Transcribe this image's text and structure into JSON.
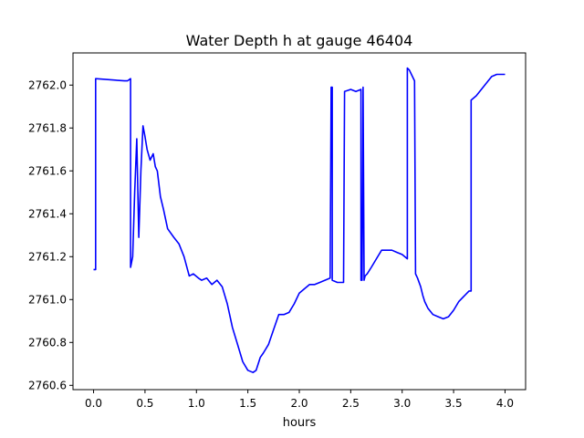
{
  "chart_data": {
    "type": "line",
    "title": "Water Depth h at gauge 46404",
    "xlabel": "hours",
    "ylabel": "",
    "xlim": [
      -0.2,
      4.2
    ],
    "ylim": [
      2760.58,
      2762.15
    ],
    "xticks": [
      0.0,
      0.5,
      1.0,
      1.5,
      2.0,
      2.5,
      3.0,
      3.5,
      4.0
    ],
    "xtick_labels": [
      "0.0",
      "0.5",
      "1.0",
      "1.5",
      "2.0",
      "2.5",
      "3.0",
      "3.5",
      "4.0"
    ],
    "yticks": [
      2760.6,
      2760.8,
      2761.0,
      2761.2,
      2761.4,
      2761.6,
      2761.8,
      2762.0
    ],
    "ytick_labels": [
      "2760.6",
      "2760.8",
      "2761.0",
      "2761.2",
      "2761.4",
      "2761.6",
      "2761.8",
      "2762.0"
    ],
    "grid": false,
    "line_color": "#0000ff",
    "series": [
      {
        "name": "",
        "x": [
          0.0,
          0.02,
          0.02,
          0.3,
          0.33,
          0.36,
          0.36,
          0.38,
          0.4,
          0.42,
          0.44,
          0.46,
          0.48,
          0.5,
          0.52,
          0.55,
          0.58,
          0.6,
          0.62,
          0.65,
          0.68,
          0.72,
          0.78,
          0.83,
          0.88,
          0.93,
          0.97,
          1.02,
          1.05,
          1.1,
          1.15,
          1.2,
          1.25,
          1.3,
          1.35,
          1.4,
          1.45,
          1.5,
          1.55,
          1.58,
          1.62,
          1.65,
          1.7,
          1.75,
          1.8,
          1.82,
          1.85,
          1.9,
          1.95,
          2.0,
          2.05,
          2.1,
          2.15,
          2.2,
          2.3,
          2.31,
          2.32,
          2.32,
          2.37,
          2.43,
          2.44,
          2.5,
          2.55,
          2.6,
          2.6,
          2.61,
          2.62,
          2.63,
          2.64,
          2.64,
          2.66,
          2.7,
          2.75,
          2.8,
          2.85,
          2.9,
          2.95,
          3.0,
          3.05,
          3.05,
          3.07,
          3.12,
          3.13,
          3.15,
          3.18,
          3.2,
          3.22,
          3.25,
          3.3,
          3.35,
          3.4,
          3.45,
          3.5,
          3.55,
          3.65,
          3.67,
          3.67,
          3.72,
          3.77,
          3.82,
          3.87,
          3.92,
          3.95,
          4.0
        ],
        "y": [
          2761.14,
          2761.14,
          2762.03,
          2762.02,
          2762.02,
          2762.03,
          2761.15,
          2761.2,
          2761.5,
          2761.75,
          2761.29,
          2761.6,
          2761.81,
          2761.76,
          2761.7,
          2761.65,
          2761.68,
          2761.62,
          2761.6,
          2761.48,
          2761.42,
          2761.33,
          2761.29,
          2761.26,
          2761.2,
          2761.11,
          2761.12,
          2761.1,
          2761.09,
          2761.1,
          2761.07,
          2761.09,
          2761.06,
          2760.98,
          2760.87,
          2760.79,
          2760.71,
          2760.67,
          2760.66,
          2760.67,
          2760.73,
          2760.75,
          2760.79,
          2760.86,
          2760.93,
          2760.93,
          2760.93,
          2760.94,
          2760.98,
          2761.03,
          2761.05,
          2761.07,
          2761.07,
          2761.08,
          2761.1,
          2761.99,
          2761.99,
          2761.09,
          2761.08,
          2761.08,
          2761.97,
          2761.98,
          2761.97,
          2761.98,
          2761.09,
          2761.09,
          2761.99,
          2761.09,
          2761.11,
          2761.11,
          2761.12,
          2761.15,
          2761.19,
          2761.23,
          2761.23,
          2761.23,
          2761.22,
          2761.21,
          2761.19,
          2762.08,
          2762.07,
          2762.02,
          2761.12,
          2761.1,
          2761.06,
          2761.02,
          2760.99,
          2760.96,
          2760.93,
          2760.92,
          2760.91,
          2760.92,
          2760.95,
          2760.99,
          2761.04,
          2761.04,
          2761.93,
          2761.95,
          2761.98,
          2762.01,
          2762.04,
          2762.05,
          2762.05,
          2762.05
        ]
      }
    ]
  }
}
